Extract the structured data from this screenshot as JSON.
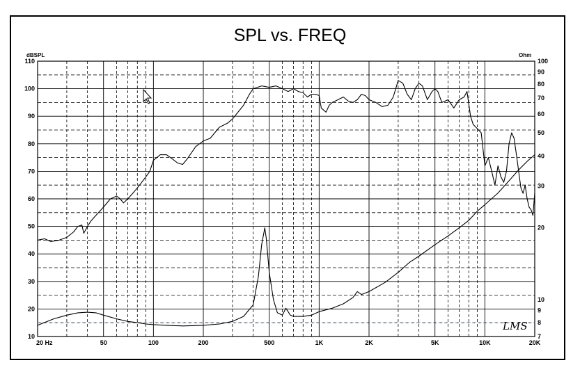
{
  "chart_data": {
    "type": "line",
    "title": "SPL vs. FREQ",
    "left_axis_unit": "dBSPL",
    "right_axis_unit": "Ohm",
    "x_scale": "log",
    "xlim": [
      20,
      20000
    ],
    "ylim": [
      10,
      110
    ],
    "y2_scale": "log",
    "y2lim": [
      7,
      100
    ],
    "grid": true,
    "x_ticks": [
      {
        "value": 20,
        "label": "20 Hz"
      },
      {
        "value": 50,
        "label": "50"
      },
      {
        "value": 100,
        "label": "100"
      },
      {
        "value": 200,
        "label": "200"
      },
      {
        "value": 500,
        "label": "500"
      },
      {
        "value": 1000,
        "label": "1K"
      },
      {
        "value": 2000,
        "label": "2K"
      },
      {
        "value": 5000,
        "label": "5K"
      },
      {
        "value": 10000,
        "label": "10K"
      },
      {
        "value": 20000,
        "label": "20K"
      }
    ],
    "y_ticks": [
      {
        "value": 10,
        "label": "10"
      },
      {
        "value": 20,
        "label": "20"
      },
      {
        "value": 30,
        "label": "30"
      },
      {
        "value": 40,
        "label": "40"
      },
      {
        "value": 50,
        "label": "50"
      },
      {
        "value": 60,
        "label": "60"
      },
      {
        "value": 70,
        "label": "70"
      },
      {
        "value": 80,
        "label": "80"
      },
      {
        "value": 90,
        "label": "90"
      },
      {
        "value": 100,
        "label": "100"
      },
      {
        "value": 110,
        "label": "110"
      }
    ],
    "y2_ticks": [
      {
        "value": 7,
        "label": "7"
      },
      {
        "value": 8,
        "label": "8"
      },
      {
        "value": 9,
        "label": "9"
      },
      {
        "value": 10,
        "label": "10"
      },
      {
        "value": 20,
        "label": "20"
      },
      {
        "value": 30,
        "label": "30"
      },
      {
        "value": 40,
        "label": "40"
      },
      {
        "value": 50,
        "label": "50"
      },
      {
        "value": 60,
        "label": "60"
      },
      {
        "value": 70,
        "label": "70"
      },
      {
        "value": 80,
        "label": "80"
      },
      {
        "value": 90,
        "label": "90"
      },
      {
        "value": 100,
        "label": "100"
      }
    ],
    "series": [
      {
        "axis": "left",
        "color": "#000000",
        "points": [
          [
            20,
            45
          ],
          [
            22,
            45.5
          ],
          [
            24,
            44.5
          ],
          [
            27,
            45
          ],
          [
            30,
            46
          ],
          [
            33,
            48
          ],
          [
            35,
            50
          ],
          [
            37,
            50.5
          ],
          [
            38,
            47.5
          ],
          [
            40,
            50
          ],
          [
            42,
            52
          ],
          [
            45,
            54
          ],
          [
            50,
            57
          ],
          [
            55,
            60
          ],
          [
            60,
            61
          ],
          [
            63,
            60
          ],
          [
            66,
            58.5
          ],
          [
            70,
            60
          ],
          [
            75,
            62
          ],
          [
            80,
            64
          ],
          [
            85,
            66
          ],
          [
            90,
            68
          ],
          [
            95,
            70
          ],
          [
            100,
            74
          ],
          [
            110,
            76
          ],
          [
            120,
            76
          ],
          [
            130,
            74.5
          ],
          [
            140,
            73
          ],
          [
            150,
            72.5
          ],
          [
            160,
            74.5
          ],
          [
            180,
            79
          ],
          [
            200,
            81
          ],
          [
            220,
            82
          ],
          [
            250,
            86
          ],
          [
            280,
            87.5
          ],
          [
            300,
            89
          ],
          [
            350,
            94
          ],
          [
            380,
            98
          ],
          [
            400,
            100
          ],
          [
            450,
            101
          ],
          [
            500,
            100.5
          ],
          [
            550,
            101
          ],
          [
            600,
            100
          ],
          [
            650,
            99
          ],
          [
            700,
            100
          ],
          [
            750,
            99
          ],
          [
            800,
            98.5
          ],
          [
            850,
            97
          ],
          [
            900,
            98
          ],
          [
            950,
            98
          ],
          [
            1000,
            97.5
          ],
          [
            1030,
            93
          ],
          [
            1100,
            91.5
          ],
          [
            1150,
            94
          ],
          [
            1200,
            95
          ],
          [
            1300,
            96
          ],
          [
            1400,
            97
          ],
          [
            1500,
            95.5
          ],
          [
            1600,
            95
          ],
          [
            1700,
            96
          ],
          [
            1800,
            98
          ],
          [
            1900,
            97.5
          ],
          [
            2000,
            96
          ],
          [
            2200,
            95
          ],
          [
            2400,
            93.5
          ],
          [
            2600,
            94
          ],
          [
            2800,
            97
          ],
          [
            3000,
            103
          ],
          [
            3200,
            102
          ],
          [
            3400,
            98
          ],
          [
            3600,
            96
          ],
          [
            3800,
            100
          ],
          [
            4000,
            102
          ],
          [
            4200,
            101
          ],
          [
            4500,
            96
          ],
          [
            4800,
            99
          ],
          [
            5000,
            100
          ],
          [
            5200,
            99
          ],
          [
            5500,
            95
          ],
          [
            6000,
            96
          ],
          [
            6500,
            93
          ],
          [
            7000,
            96
          ],
          [
            7500,
            97
          ],
          [
            7800,
            99
          ],
          [
            8200,
            90
          ],
          [
            8500,
            87
          ],
          [
            9000,
            85.5
          ],
          [
            9500,
            84
          ],
          [
            10000,
            72
          ],
          [
            10500,
            75
          ],
          [
            11000,
            70
          ],
          [
            11500,
            65
          ],
          [
            12000,
            72
          ],
          [
            12500,
            68
          ],
          [
            13000,
            66
          ],
          [
            13500,
            70
          ],
          [
            14000,
            80
          ],
          [
            14500,
            84
          ],
          [
            15000,
            82
          ],
          [
            15500,
            76
          ],
          [
            16000,
            70
          ],
          [
            16500,
            64
          ],
          [
            17000,
            62
          ],
          [
            17500,
            65
          ],
          [
            18000,
            60
          ],
          [
            18500,
            57
          ],
          [
            19000,
            56
          ],
          [
            19500,
            54
          ],
          [
            20000,
            62
          ]
        ]
      },
      {
        "axis": "right",
        "color": "#000000",
        "points": [
          [
            20,
            7.8
          ],
          [
            25,
            8.3
          ],
          [
            30,
            8.6
          ],
          [
            35,
            8.8
          ],
          [
            40,
            8.85
          ],
          [
            45,
            8.8
          ],
          [
            50,
            8.6
          ],
          [
            60,
            8.3
          ],
          [
            70,
            8.1
          ],
          [
            80,
            8.0
          ],
          [
            90,
            7.9
          ],
          [
            100,
            7.85
          ],
          [
            120,
            7.8
          ],
          [
            150,
            7.75
          ],
          [
            200,
            7.8
          ],
          [
            250,
            7.9
          ],
          [
            300,
            8.1
          ],
          [
            350,
            8.5
          ],
          [
            400,
            9.5
          ],
          [
            430,
            12.5
          ],
          [
            450,
            17
          ],
          [
            470,
            20
          ],
          [
            480,
            18
          ],
          [
            500,
            13
          ],
          [
            530,
            10
          ],
          [
            560,
            8.8
          ],
          [
            600,
            8.6
          ],
          [
            630,
            9.2
          ],
          [
            670,
            8.6
          ],
          [
            700,
            8.5
          ],
          [
            800,
            8.5
          ],
          [
            900,
            8.6
          ],
          [
            1000,
            8.9
          ],
          [
            1200,
            9.2
          ],
          [
            1400,
            9.6
          ],
          [
            1600,
            10.2
          ],
          [
            1700,
            10.8
          ],
          [
            1800,
            10.5
          ],
          [
            2000,
            10.8
          ],
          [
            2500,
            11.8
          ],
          [
            3000,
            13
          ],
          [
            3500,
            14.3
          ],
          [
            4000,
            15.2
          ],
          [
            5000,
            17
          ],
          [
            6000,
            18.5
          ],
          [
            7000,
            20
          ],
          [
            8000,
            21.5
          ],
          [
            9000,
            23.5
          ],
          [
            10000,
            25
          ],
          [
            12000,
            28
          ],
          [
            14000,
            31.5
          ],
          [
            16000,
            35
          ],
          [
            18000,
            38
          ],
          [
            20000,
            40.5
          ]
        ]
      }
    ]
  },
  "watermark": "LMS"
}
